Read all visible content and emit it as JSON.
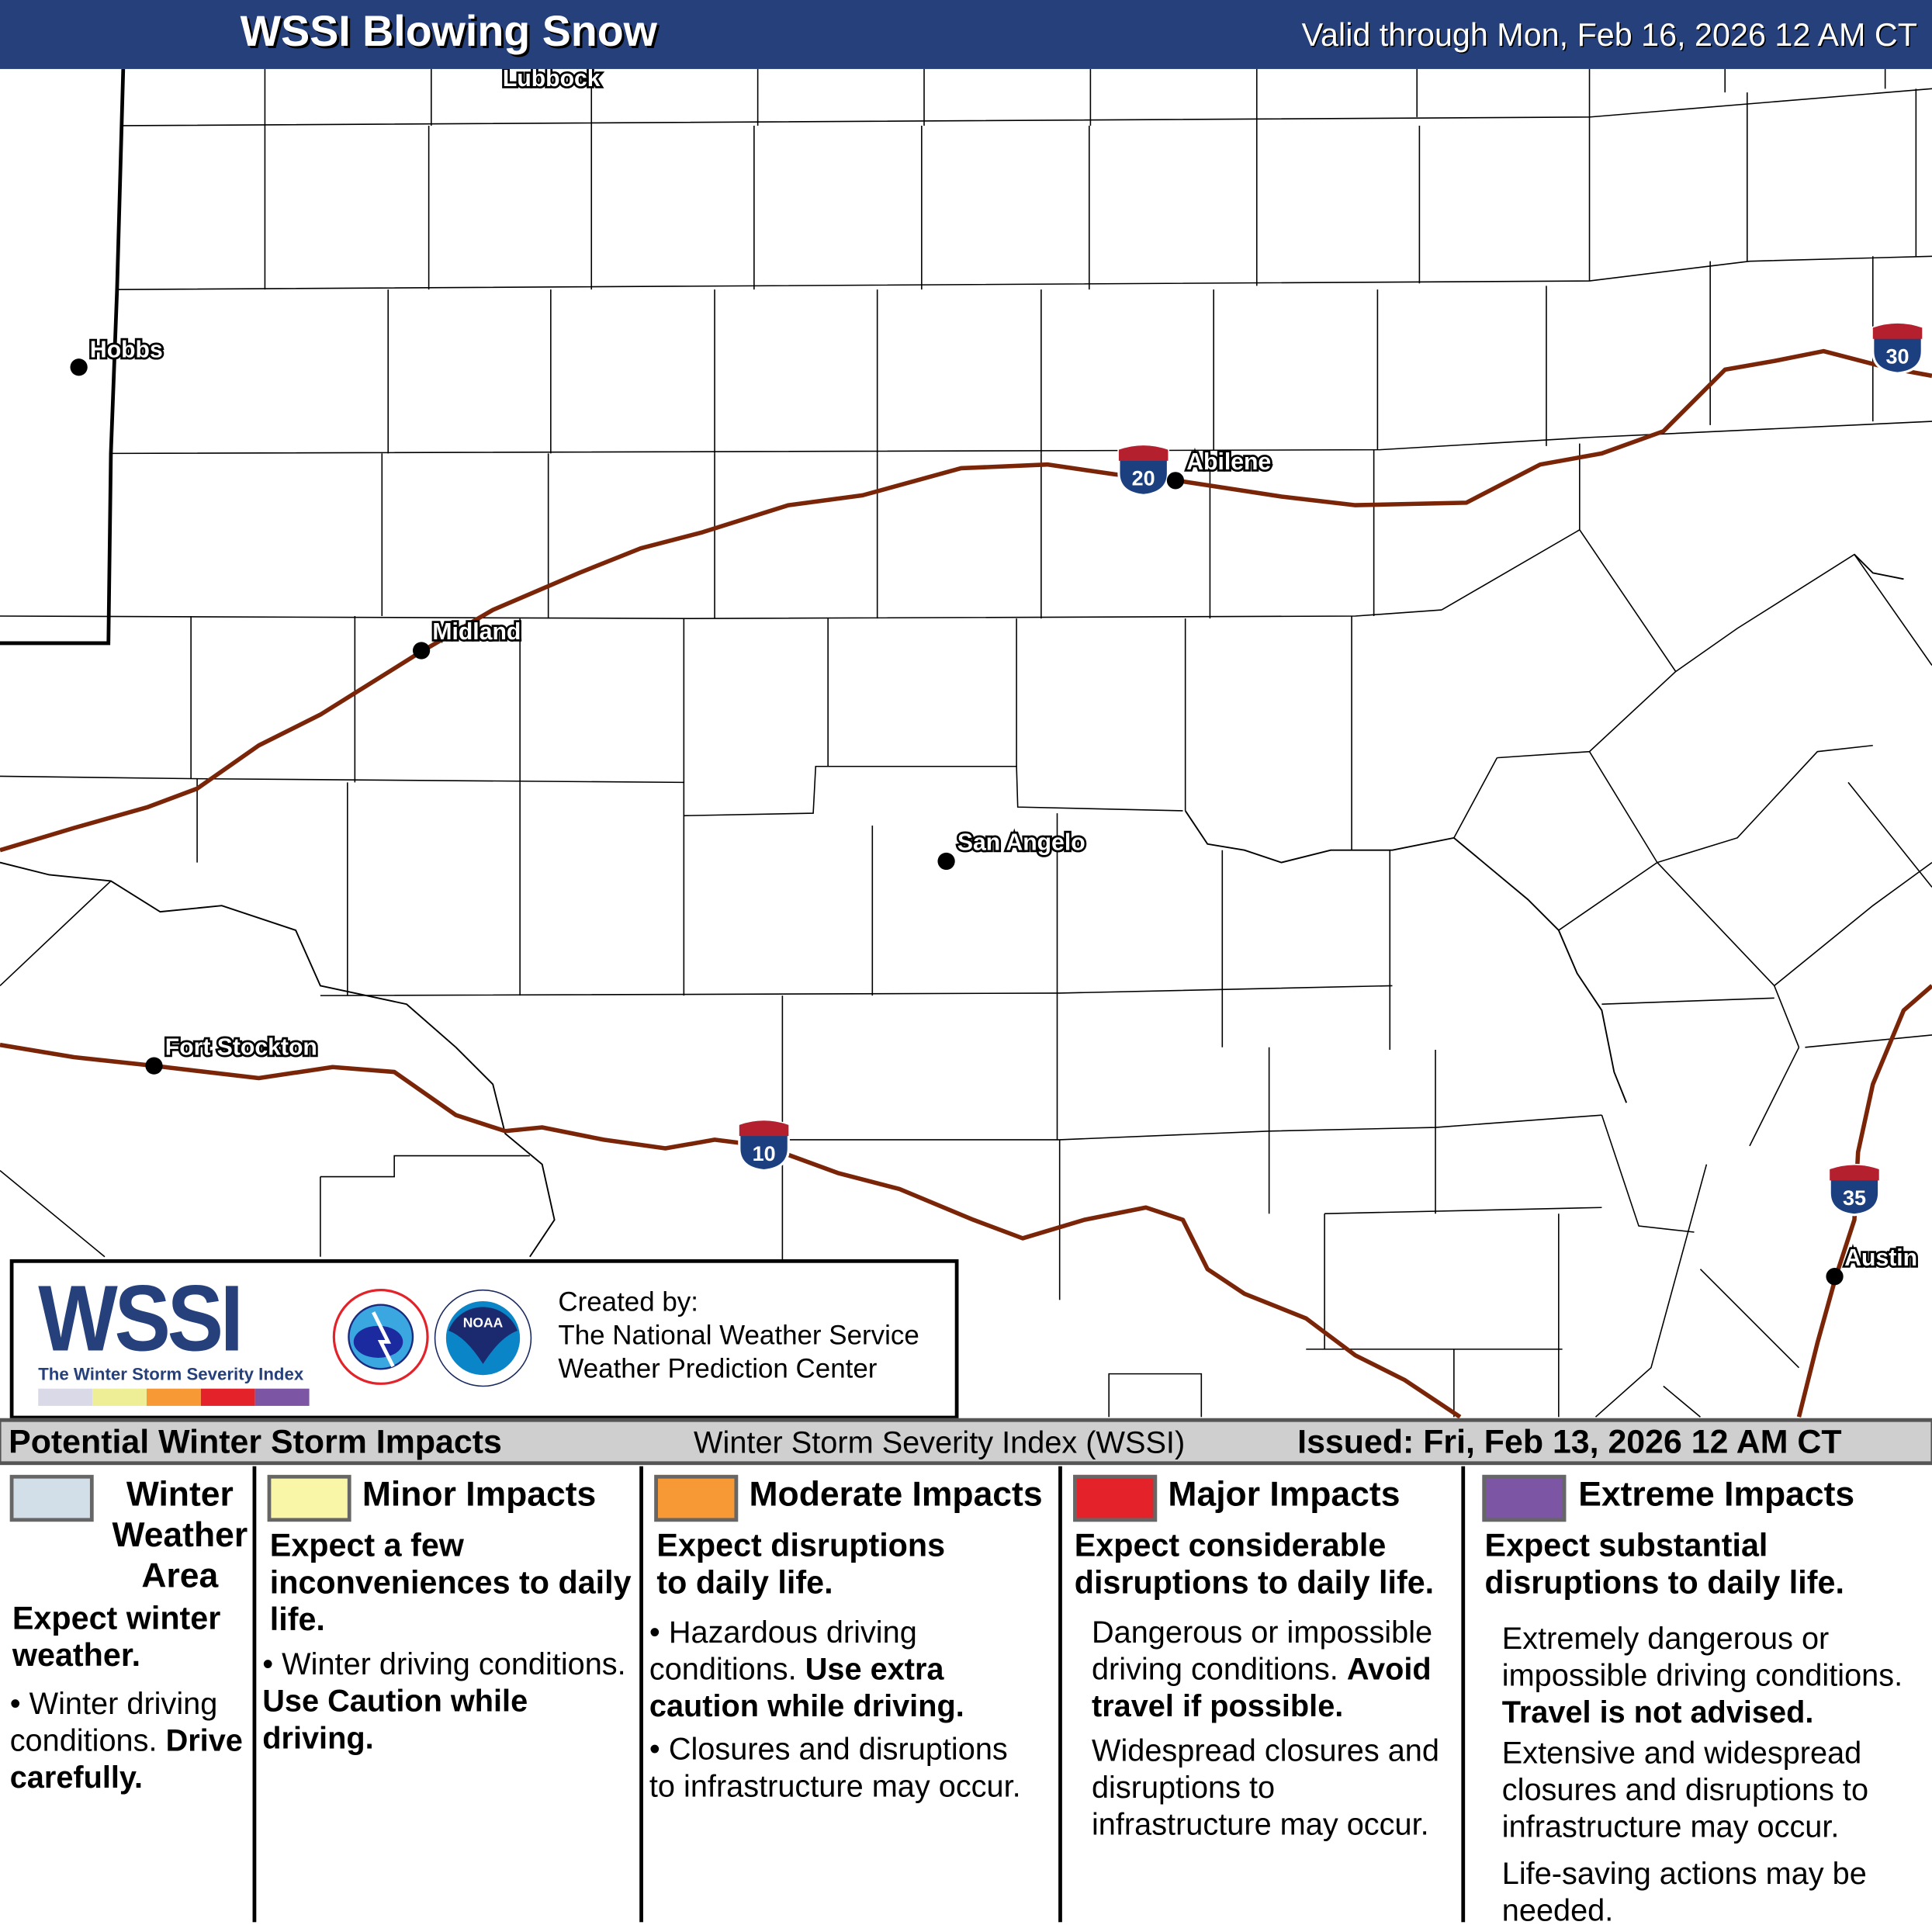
{
  "header": {
    "title": "WSSI Blowing Snow",
    "valid": "Valid through Mon, Feb 16, 2026 12 AM CT"
  },
  "map": {
    "cities": [
      {
        "name": "Lubbock"
      },
      {
        "name": "Hobbs"
      },
      {
        "name": "Abilene"
      },
      {
        "name": "Midland"
      },
      {
        "name": "San Angelo"
      },
      {
        "name": "Fort Stockton"
      },
      {
        "name": "Austin"
      }
    ],
    "interstates": [
      "20",
      "30",
      "10",
      "35"
    ],
    "interstate_color": "#7a2408"
  },
  "logo": {
    "wssi": "WSSI",
    "tagline": "The Winter Storm Severity Index",
    "colors": [
      "#d9d9e8",
      "#eeee96",
      "#f79a35",
      "#e3222a",
      "#7c55a4"
    ],
    "created_by": "Created by:",
    "org1": "The National Weather Service",
    "org2": "Weather Prediction Center"
  },
  "strip": {
    "left": "Potential Winter Storm Impacts",
    "center": "Winter Storm Severity Index (WSSI)",
    "right": "Issued: Fri, Feb 13, 2026 12 AM CT"
  },
  "legend": [
    {
      "title": "Winter Weather Area",
      "color": "#d3dfe8",
      "summary": "Expect winter weather.",
      "bullet": "Winter driving conditions.",
      "bullet_bold": "Drive carefully."
    },
    {
      "title": "Minor Impacts",
      "color": "#faf6a8",
      "summary": "Expect a few inconveniences to daily life.",
      "bullet": "Winter driving conditions.",
      "bullet_bold": "Use Caution while driving."
    },
    {
      "title": "Moderate Impacts",
      "color": "#f79a35",
      "summary": "Expect disruptions to daily life.",
      "bullet": "Hazardous driving conditions.",
      "bullet_bold": "Use extra caution while driving.",
      "bullet2": "Closures and disruptions to infrastructure may occur."
    },
    {
      "title": "Major Impacts",
      "color": "#e3222a",
      "summary": "Expect considerable disruptions to daily life.",
      "p1": "Dangerous or impossible driving conditions.",
      "p1_bold": "Avoid travel if possible.",
      "p2": "Widespread closures and disruptions to infrastructure may occur."
    },
    {
      "title": "Extreme Impacts",
      "color": "#7c55a4",
      "summary": "Expect substantial disruptions to daily life.",
      "p1": "Extremely dangerous or impossible driving conditions.",
      "p1_bold": "Travel is not advised.",
      "p2": "Extensive and widespread closures and disruptions to infrastructure may occur.",
      "p3": "Life-saving actions may be needed."
    }
  ]
}
